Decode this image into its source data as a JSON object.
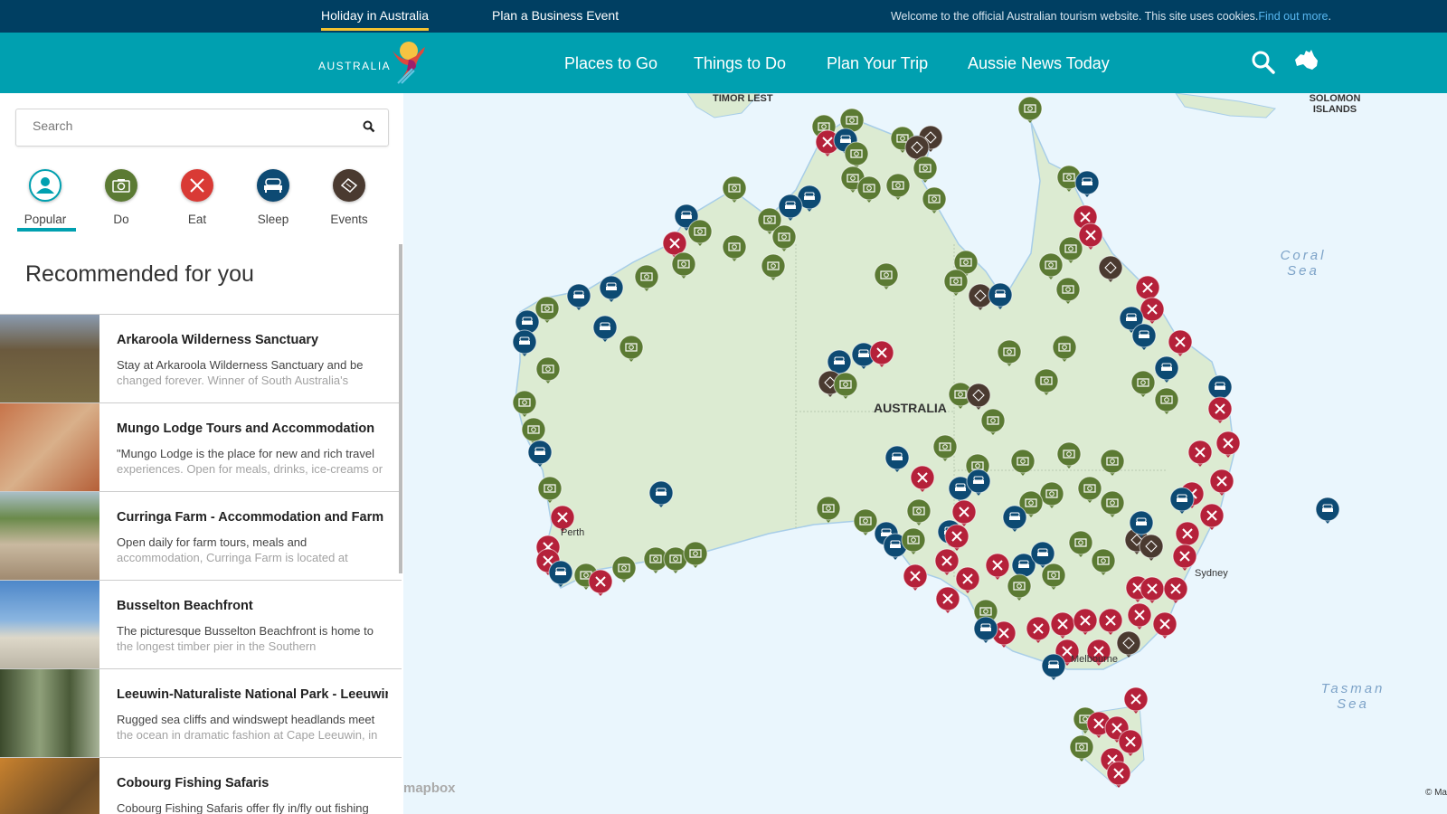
{
  "topbar": {
    "tabs": [
      "Holiday in Australia",
      "Plan a Business Event"
    ],
    "cookie_text": "Welcome to the official Australian tourism website. This site uses cookies.",
    "cookie_link": "Find out more",
    "cookie_end": "."
  },
  "nav": {
    "logo": "AUSTRALIA",
    "links": [
      "Places to Go",
      "Things to Do",
      "Plan Your Trip",
      "Aussie News Today"
    ],
    "icons": [
      "search-icon",
      "australia-map-icon"
    ]
  },
  "sidebar": {
    "search_placeholder": "Search",
    "categories": [
      {
        "label": "Popular",
        "icon": "person-icon",
        "color": "#00a0b0"
      },
      {
        "label": "Do",
        "icon": "camera-icon",
        "color": "#5b7a33"
      },
      {
        "label": "Eat",
        "icon": "cutlery-icon",
        "color": "#d93a35"
      },
      {
        "label": "Sleep",
        "icon": "bed-icon",
        "color": "#0d4a73"
      },
      {
        "label": "Events",
        "icon": "ticket-icon",
        "color": "#4a3a30"
      }
    ],
    "selected_category": "Popular",
    "heading": "Recommended for you",
    "items": [
      {
        "title": "Arkaroola Wilderness Sanctuary",
        "desc": "Stay at Arkaroola Wilderness Sanctuary and be changed forever. Winner of South Australia's"
      },
      {
        "title": "Mungo Lodge Tours and Accommodation",
        "desc": "\"Mungo Lodge is the place for new and rich travel experiences. Open for meals, drinks, ice-creams or"
      },
      {
        "title": "Curringa Farm - Accommodation and Farm ...",
        "desc": "Open daily for farm tours, meals and accommodation, Curringa Farm is located at"
      },
      {
        "title": "Busselton Beachfront",
        "desc": "The picturesque Busselton Beachfront is home to the longest timber pier in the Southern"
      },
      {
        "title": "Leeuwin-Naturaliste National Park - Leeuwin",
        "desc": "Rugged sea cliffs and windswept headlands meet the ocean in dramatic fashion at Cape Leeuwin, in"
      },
      {
        "title": "Cobourg Fishing Safaris",
        "desc": "Cobourg Fishing Safaris offer fly in/fly out fishing"
      }
    ]
  },
  "map": {
    "labels": {
      "timor": "TIMOR LEST",
      "solomon": "SOLOMON ISLANDS",
      "country": "AUSTRALIA",
      "perth": "Perth",
      "sydney": "Sydney",
      "melbourne": "Melbourne",
      "coral": "Coral Sea",
      "tasman": "Tasman Sea"
    },
    "attribution": "mapbox",
    "copyright": "© Ma",
    "marker_colors": {
      "do": "#5b7a33",
      "eat": "#b5213a",
      "sleep": "#0d4a73",
      "events": "#4a3a30"
    }
  }
}
